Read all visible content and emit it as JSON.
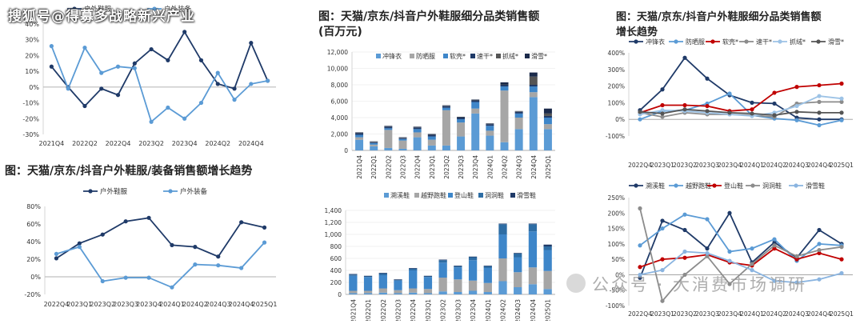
{
  "watermark_top": "搜狐号@得募多战略新兴产业",
  "watermark_bottom": "公众号 · 大消费市场调研",
  "colors": {
    "navy": "#1f3a68",
    "light_blue": "#5b9bd5",
    "sky": "#3e86c9",
    "gray": "#a6a6a6",
    "red": "#c00000",
    "mid_gray": "#8c8c8c",
    "pale_blue": "#9dc3e6",
    "dark_gray": "#555555",
    "deep_navy": "#1b2a4a",
    "steel": "#2e6da4",
    "pale_sky": "#8ab4e0"
  },
  "chart_data": [
    {
      "id": "c1",
      "type": "line",
      "title": "",
      "categories": [
        "2021Q4",
        "2022Q1",
        "2022Q2",
        "2022Q3",
        "2022Q4",
        "2023Q1",
        "2023Q2",
        "2023Q3",
        "2023Q4",
        "2024Q1",
        "2024Q2",
        "2024Q3",
        "2024Q4",
        "2025Q1"
      ],
      "x_tick_labels": [
        "2021Q4",
        "",
        "2022Q2",
        "",
        "2022Q4",
        "",
        "2023Q2",
        "",
        "2023Q4",
        "",
        "2024Q2",
        "",
        "2024Q4",
        ""
      ],
      "ylim": [
        -30,
        40
      ],
      "yticks": [
        -30,
        -20,
        -10,
        0,
        10,
        20,
        30,
        40
      ],
      "y_tick_labels": [
        "-30%",
        "-20%",
        "-10%",
        "0%",
        "10%",
        "20%",
        "30%",
        "40%"
      ],
      "legend_position": "top",
      "series": [
        {
          "name": "户外鞋服",
          "color": "#1f3a68",
          "values": [
            13,
            0,
            -12,
            -1,
            -5,
            15,
            24,
            17,
            35,
            17,
            2,
            -1,
            28,
            4
          ]
        },
        {
          "name": "户外装备",
          "color": "#5b9bd5",
          "values": [
            26,
            -1,
            25,
            9,
            13,
            12,
            -22,
            -13,
            -20,
            -10,
            9,
            -8,
            2,
            4
          ]
        }
      ]
    },
    {
      "id": "c2",
      "type": "line",
      "title": "图：天猫/京东/抖音户外鞋服/装备销售额增长趋势",
      "categories": [
        "2022Q4",
        "2023Q1",
        "2023Q2",
        "2023Q3",
        "2023Q4",
        "2024Q1",
        "2024Q2",
        "2024Q3",
        "2024Q4",
        "2025Q1"
      ],
      "x_tick_labels": [
        "2022Q4",
        "2023Q1",
        "2023Q2",
        "2023Q3",
        "2023Q4",
        "2024Q1",
        "2024Q2",
        "2024Q3",
        "2024Q4",
        "2025Q1"
      ],
      "ylim": [
        -20,
        80
      ],
      "yticks": [
        -20,
        0,
        20,
        40,
        60,
        80
      ],
      "y_tick_labels": [
        "-20%",
        "0%",
        "20%",
        "40%",
        "60%",
        "80%"
      ],
      "legend_position": "top",
      "series": [
        {
          "name": "户外鞋服",
          "color": "#1f3a68",
          "values": [
            21,
            38,
            48,
            63,
            67,
            36,
            34,
            23,
            62,
            56
          ]
        },
        {
          "name": "户外装备",
          "color": "#5b9bd5",
          "values": [
            26,
            34,
            -5,
            -1,
            -1,
            -12,
            14,
            13,
            10,
            39
          ]
        }
      ]
    },
    {
      "id": "c3",
      "type": "bar",
      "stacked": true,
      "title": "图：天猫/京东/抖音户外鞋服细分品类销售额\n(百万元)",
      "categories": [
        "2021Q4",
        "2022Q1",
        "2022Q2",
        "2022Q3",
        "2022Q4",
        "2023Q1",
        "2023Q2",
        "2023Q3",
        "2023Q4",
        "2024Q1",
        "2024Q2",
        "2024Q3",
        "2024Q4",
        "2025Q1"
      ],
      "ylim": [
        0,
        12000
      ],
      "yticks": [
        0,
        2000,
        4000,
        6000,
        8000,
        10000,
        12000
      ],
      "y_tick_labels": [
        "0",
        "2,000",
        "4,000",
        "6,000",
        "8,000",
        "10,000",
        "12,000"
      ],
      "legend_position": "top",
      "series": [
        {
          "name": "冲锋衣",
          "color": "#5b9bd5",
          "values": [
            1300,
            500,
            300,
            200,
            1600,
            600,
            600,
            1700,
            4500,
            1800,
            1000,
            2600,
            6500,
            2600
          ]
        },
        {
          "name": "防晒服",
          "color": "#a6a6a6",
          "values": [
            300,
            200,
            2200,
            1000,
            600,
            700,
            4300,
            1700,
            600,
            600,
            6300,
            1400,
            600,
            600
          ]
        },
        {
          "name": "软壳*",
          "color": "#3e86c9",
          "values": [
            300,
            200,
            200,
            200,
            400,
            400,
            300,
            400,
            800,
            600,
            500,
            500,
            700,
            800
          ]
        },
        {
          "name": "速干*",
          "color": "#1f3a68",
          "values": [
            200,
            100,
            200,
            100,
            200,
            200,
            200,
            200,
            200,
            200,
            200,
            200,
            200,
            200
          ]
        },
        {
          "name": "抓绒*",
          "color": "#555555",
          "values": [
            50,
            50,
            50,
            50,
            50,
            50,
            50,
            50,
            50,
            50,
            50,
            50,
            1000,
            300
          ]
        },
        {
          "name": "滑雪*",
          "color": "#1b2a4a",
          "values": [
            50,
            50,
            50,
            50,
            50,
            50,
            50,
            50,
            50,
            50,
            250,
            50,
            500,
            600
          ]
        }
      ]
    },
    {
      "id": "c4",
      "type": "bar",
      "stacked": true,
      "title": "",
      "categories": [
        "2021Q4",
        "2022Q1",
        "2022Q2",
        "2022Q3",
        "2022Q4",
        "2023Q1",
        "2023Q2",
        "2023Q3",
        "2023Q4",
        "2024Q1",
        "2024Q2",
        "2024Q3",
        "2024Q4",
        "2025Q1"
      ],
      "ylim": [
        0,
        1400
      ],
      "yticks": [
        0,
        200,
        400,
        600,
        800,
        1000,
        1200,
        1400
      ],
      "y_tick_labels": [
        "0",
        "200",
        "400",
        "600",
        "800",
        "1,000",
        "1,200",
        "1,400"
      ],
      "legend_position": "top",
      "series": [
        {
          "name": "溯溪鞋",
          "color": "#5b9bd5",
          "values": [
            20,
            20,
            30,
            20,
            30,
            20,
            50,
            40,
            60,
            40,
            220,
            120,
            170,
            90
          ]
        },
        {
          "name": "越野跑鞋",
          "color": "#a6a6a6",
          "values": [
            40,
            40,
            70,
            50,
            70,
            70,
            230,
            210,
            170,
            150,
            380,
            250,
            280,
            300
          ]
        },
        {
          "name": "登山鞋",
          "color": "#3e86c9",
          "values": [
            250,
            230,
            220,
            160,
            300,
            200,
            250,
            200,
            340,
            250,
            400,
            250,
            600,
            350
          ]
        },
        {
          "name": "洞洞鞋",
          "color": "#2e6da4",
          "values": [
            20,
            10,
            30,
            10,
            30,
            10,
            40,
            20,
            50,
            30,
            170,
            60,
            120,
            60
          ]
        },
        {
          "name": "滑雪鞋",
          "color": "#1f3a68",
          "values": [
            10,
            10,
            10,
            10,
            10,
            10,
            10,
            10,
            10,
            10,
            10,
            10,
            10,
            30
          ]
        }
      ]
    },
    {
      "id": "c5",
      "type": "line",
      "title": "图：天猫/京东/抖音户外鞋服细分品类销售额\n增长趋势",
      "categories": [
        "2022Q4",
        "2023Q1",
        "2023Q2",
        "2023Q3",
        "2023Q4",
        "2024Q1",
        "2024Q2",
        "2024Q3",
        "2024Q4",
        "2025Q1"
      ],
      "x_tick_labels": [
        "2022Q4",
        "2023Q1",
        "2023Q2",
        "2023Q3",
        "2023Q4",
        "2024Q1",
        "2024Q2",
        "2024Q3",
        "2024Q4",
        "2025Q1"
      ],
      "ylim": [
        -100,
        400
      ],
      "yticks": [
        -100,
        0,
        100,
        200,
        300,
        400
      ],
      "y_tick_labels": [
        "-100%",
        "0%",
        "100%",
        "200%",
        "300%",
        "400%"
      ],
      "legend_position": "top",
      "series": [
        {
          "name": "冲锋衣",
          "color": "#1f3a68",
          "values": [
            55,
            180,
            370,
            245,
            145,
            100,
            95,
            10,
            0,
            0
          ]
        },
        {
          "name": "防晒服",
          "color": "#5b9bd5",
          "values": [
            0,
            50,
            55,
            95,
            155,
            25,
            5,
            -5,
            -35,
            -5
          ]
        },
        {
          "name": "软壳*",
          "color": "#c00000",
          "values": [
            40,
            85,
            85,
            80,
            50,
            60,
            160,
            195,
            205,
            215
          ]
        },
        {
          "name": "速干*",
          "color": "#8c8c8c",
          "values": [
            40,
            15,
            40,
            30,
            30,
            25,
            15,
            95,
            105,
            105
          ]
        },
        {
          "name": "抓绒*",
          "color": "#9dc3e6",
          "values": [
            30,
            55,
            50,
            40,
            30,
            20,
            40,
            80,
            140,
            125
          ]
        },
        {
          "name": "滑雪*",
          "color": "#555555",
          "values": [
            45,
            35,
            60,
            50,
            40,
            35,
            25,
            45,
            40,
            40
          ]
        }
      ]
    },
    {
      "id": "c6",
      "type": "line",
      "title": "",
      "categories": [
        "2022Q4",
        "2023Q1",
        "2023Q2",
        "2023Q3",
        "2023Q4",
        "2024Q1",
        "2024Q2",
        "2024Q3",
        "2024Q4",
        "2025Q1"
      ],
      "x_tick_labels": [
        "2022Q4",
        "2023Q1",
        "2023Q2",
        "2023Q3",
        "2023Q4",
        "2024Q1",
        "2024Q2",
        "2024Q3",
        "2024Q4",
        "2025Q1"
      ],
      "ylim": [
        -100,
        250
      ],
      "yticks": [
        -100,
        -50,
        0,
        50,
        100,
        150,
        200,
        250
      ],
      "y_tick_labels": [
        "-100%",
        "-50%",
        "0%",
        "50%",
        "100%",
        "150%",
        "200%",
        "250%"
      ],
      "legend_position": "top",
      "series": [
        {
          "name": "溯溪鞋",
          "color": "#1f3a68",
          "values": [
            -10,
            175,
            145,
            85,
            200,
            40,
            105,
            55,
            145,
            100
          ]
        },
        {
          "name": "越野跑鞋",
          "color": "#5b9bd5",
          "values": [
            95,
            150,
            195,
            180,
            75,
            85,
            115,
            45,
            100,
            95
          ]
        },
        {
          "name": "登山鞋",
          "color": "#c00000",
          "values": [
            25,
            50,
            55,
            65,
            40,
            30,
            85,
            50,
            70,
            50
          ]
        },
        {
          "name": "洞洞鞋",
          "color": "#8c8c8c",
          "values": [
            215,
            -85,
            0,
            60,
            -30,
            35,
            95,
            60,
            80,
            90
          ]
        },
        {
          "name": "滑雪鞋",
          "color": "#8ab4e0",
          "values": [
            0,
            15,
            75,
            70,
            45,
            15,
            -20,
            -25,
            -15,
            5
          ]
        }
      ]
    }
  ]
}
